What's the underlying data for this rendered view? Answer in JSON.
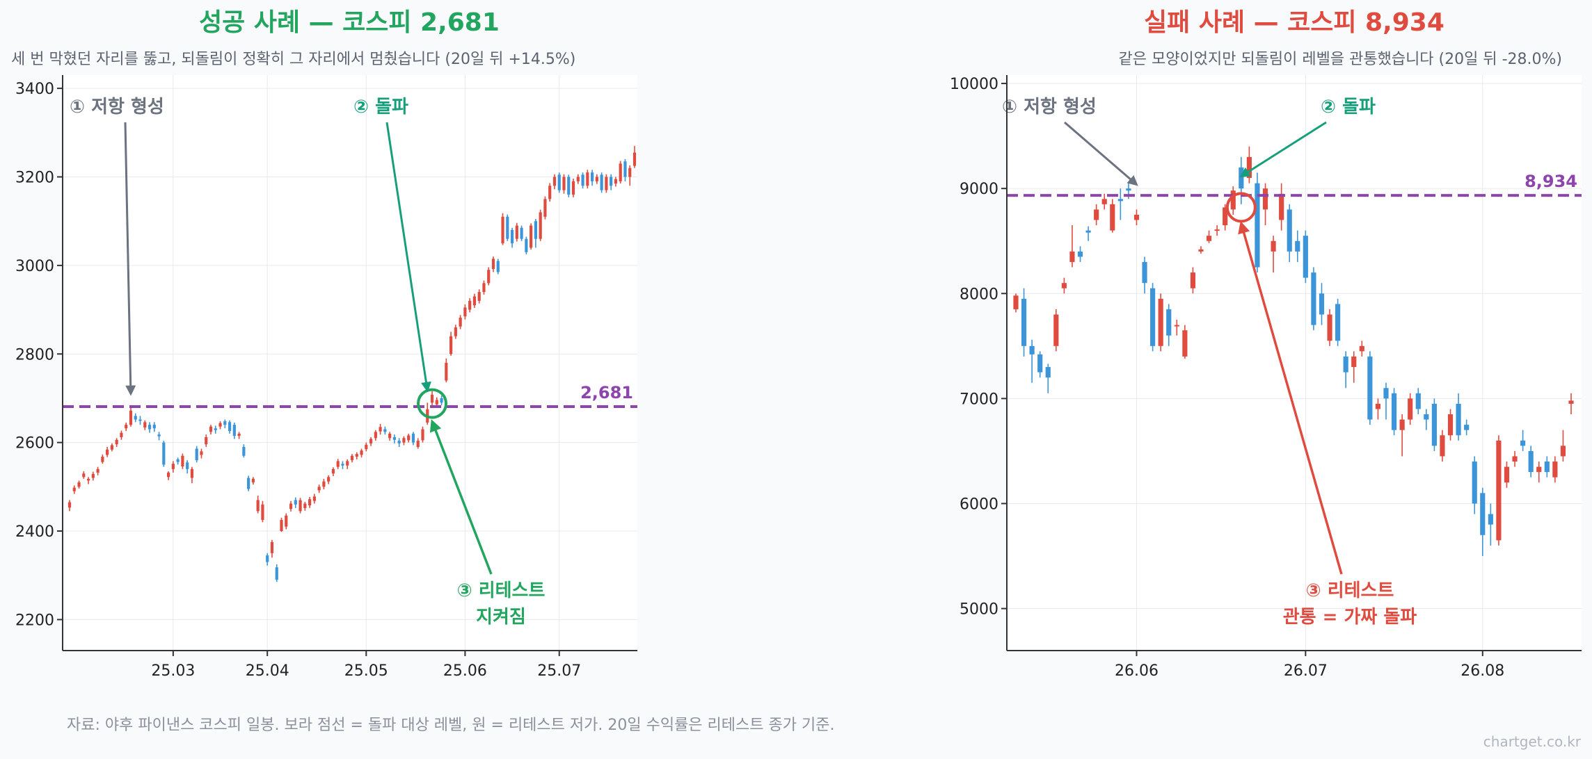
{
  "colors": {
    "up": "#e04b3f",
    "down": "#3b95d8",
    "level": "#8e44ad",
    "success": "#22a55e",
    "failure": "#e04b3f",
    "neutral": "#6b7280",
    "breakout": "#179e7a"
  },
  "footer": {
    "source": "자료: 야후 파이낸스 코스피 일봉. 보라 점선 = 돌파 대상 레벨, 원 = 리테스트 저가. 20일 수익률은 리테스트 종가 기준.",
    "brand": "chartget.co.kr"
  },
  "chart_data": [
    {
      "type": "candlestick",
      "title": "성공 사례 — 코스피 2,681",
      "subtitle": "세 번 막혔던 자리를 뚫고, 되돌림이 정확히 그 자리에서 멈췄습니다  (20일 뒤 +14.5%)",
      "title_color": "#22a55e",
      "ylim": [
        2130,
        3430
      ],
      "yticks": [
        2200,
        2400,
        2600,
        2800,
        3000,
        3200,
        3400
      ],
      "ytick_labels": [
        "2200",
        "2400",
        "2600",
        "2800",
        "3000",
        "3200",
        "3400"
      ],
      "xticks": [
        "25.03",
        "25.04",
        "25.05",
        "25.06",
        "25.07"
      ],
      "grid": true,
      "level": 2681,
      "level_label": "2,681",
      "retest": {
        "index": 77,
        "price": 2688
      },
      "annotations": [
        {
          "id": "resistance",
          "text": "① 저항 형성",
          "target_index": 13,
          "target_price": 2688,
          "color": "#6b7280"
        },
        {
          "id": "breakout",
          "text": "② 돌파",
          "target_index": 76,
          "target_price": 2702,
          "color": "#179e7a"
        },
        {
          "id": "retest",
          "text": "③ 리테스트",
          "text2": "지켜짐",
          "target_index": 77,
          "target_price": 2660,
          "color": "#22a55e"
        }
      ],
      "candles": [
        [
          2453,
          2465,
          2445,
          2470
        ],
        [
          2490,
          2498,
          2484,
          2503
        ],
        [
          2500,
          2510,
          2496,
          2514
        ],
        [
          2522,
          2530,
          2518,
          2535
        ],
        [
          2514,
          2518,
          2506,
          2522
        ],
        [
          2520,
          2529,
          2514,
          2534
        ],
        [
          2532,
          2540,
          2526,
          2545
        ],
        [
          2556,
          2568,
          2552,
          2573
        ],
        [
          2572,
          2584,
          2567,
          2590
        ],
        [
          2584,
          2594,
          2580,
          2598
        ],
        [
          2596,
          2606,
          2590,
          2610
        ],
        [
          2612,
          2622,
          2606,
          2627
        ],
        [
          2632,
          2640,
          2626,
          2645
        ],
        [
          2640,
          2672,
          2636,
          2684
        ],
        [
          2660,
          2652,
          2646,
          2666
        ],
        [
          2652,
          2650,
          2640,
          2660
        ],
        [
          2634,
          2646,
          2628,
          2650
        ],
        [
          2640,
          2630,
          2622,
          2646
        ],
        [
          2640,
          2632,
          2624,
          2646
        ],
        [
          2618,
          2614,
          2605,
          2624
        ],
        [
          2600,
          2550,
          2545,
          2604
        ],
        [
          2522,
          2532,
          2515,
          2535
        ],
        [
          2540,
          2552,
          2532,
          2558
        ],
        [
          2562,
          2556,
          2550,
          2566
        ],
        [
          2546,
          2570,
          2540,
          2575
        ],
        [
          2555,
          2540,
          2530,
          2560
        ],
        [
          2520,
          2540,
          2508,
          2545
        ],
        [
          2586,
          2560,
          2555,
          2592
        ],
        [
          2572,
          2580,
          2564,
          2586
        ],
        [
          2596,
          2612,
          2590,
          2618
        ],
        [
          2624,
          2636,
          2618,
          2640
        ],
        [
          2632,
          2628,
          2620,
          2638
        ],
        [
          2636,
          2644,
          2630,
          2648
        ],
        [
          2648,
          2640,
          2632,
          2652
        ],
        [
          2646,
          2626,
          2620,
          2650
        ],
        [
          2640,
          2615,
          2608,
          2645
        ],
        [
          2615,
          2620,
          2608,
          2624
        ],
        [
          2590,
          2570,
          2566,
          2596
        ],
        [
          2520,
          2495,
          2490,
          2525
        ],
        [
          2510,
          2518,
          2505,
          2522
        ],
        [
          2445,
          2470,
          2440,
          2480
        ],
        [
          2425,
          2460,
          2420,
          2468
        ],
        [
          2345,
          2330,
          2322,
          2350
        ],
        [
          2350,
          2375,
          2340,
          2380
        ],
        [
          2318,
          2290,
          2285,
          2325
        ],
        [
          2400,
          2425,
          2398,
          2430
        ],
        [
          2410,
          2435,
          2404,
          2440
        ],
        [
          2450,
          2462,
          2444,
          2468
        ],
        [
          2470,
          2460,
          2452,
          2476
        ],
        [
          2445,
          2470,
          2440,
          2475
        ],
        [
          2452,
          2462,
          2446,
          2466
        ],
        [
          2458,
          2472,
          2452,
          2477
        ],
        [
          2468,
          2478,
          2462,
          2484
        ],
        [
          2492,
          2500,
          2486,
          2505
        ],
        [
          2500,
          2512,
          2494,
          2518
        ],
        [
          2512,
          2522,
          2506,
          2526
        ],
        [
          2530,
          2540,
          2524,
          2544
        ],
        [
          2545,
          2558,
          2540,
          2563
        ],
        [
          2552,
          2548,
          2540,
          2558
        ],
        [
          2548,
          2558,
          2540,
          2562
        ],
        [
          2560,
          2570,
          2555,
          2574
        ],
        [
          2568,
          2574,
          2562,
          2578
        ],
        [
          2572,
          2582,
          2566,
          2586
        ],
        [
          2585,
          2595,
          2580,
          2600
        ],
        [
          2598,
          2608,
          2592,
          2612
        ],
        [
          2610,
          2624,
          2604,
          2628
        ],
        [
          2625,
          2635,
          2618,
          2642
        ],
        [
          2630,
          2624,
          2618,
          2636
        ],
        [
          2610,
          2620,
          2604,
          2624
        ],
        [
          2612,
          2606,
          2598,
          2618
        ],
        [
          2604,
          2598,
          2590,
          2610
        ],
        [
          2600,
          2610,
          2594,
          2614
        ],
        [
          2605,
          2616,
          2600,
          2620
        ],
        [
          2620,
          2600,
          2594,
          2624
        ],
        [
          2590,
          2604,
          2586,
          2610
        ],
        [
          2605,
          2630,
          2600,
          2636
        ],
        [
          2645,
          2675,
          2640,
          2690
        ],
        [
          2690,
          2708,
          2684,
          2716
        ],
        [
          2686,
          2696,
          2680,
          2702
        ],
        [
          2700,
          2690,
          2684,
          2706
        ],
        [
          2740,
          2780,
          2736,
          2790
        ],
        [
          2800,
          2840,
          2796,
          2850
        ],
        [
          2840,
          2860,
          2834,
          2866
        ],
        [
          2862,
          2882,
          2856,
          2888
        ],
        [
          2885,
          2905,
          2878,
          2912
        ],
        [
          2900,
          2920,
          2894,
          2926
        ],
        [
          2910,
          2930,
          2904,
          2936
        ],
        [
          2920,
          2940,
          2914,
          2946
        ],
        [
          2940,
          2960,
          2934,
          2966
        ],
        [
          2960,
          2990,
          2955,
          2996
        ],
        [
          2992,
          3015,
          2985,
          3020
        ],
        [
          3010,
          2985,
          2980,
          3015
        ],
        [
          3050,
          3110,
          3046,
          3118
        ],
        [
          3110,
          3060,
          3055,
          3115
        ],
        [
          3080,
          3050,
          3040,
          3085
        ],
        [
          3060,
          3090,
          3054,
          3096
        ],
        [
          3085,
          3060,
          3055,
          3090
        ],
        [
          3060,
          3030,
          3025,
          3065
        ],
        [
          3040,
          3090,
          3036,
          3095
        ],
        [
          3100,
          3060,
          3040,
          3105
        ],
        [
          3060,
          3120,
          3055,
          3126
        ],
        [
          3110,
          3150,
          3104,
          3156
        ],
        [
          3150,
          3180,
          3144,
          3186
        ],
        [
          3180,
          3200,
          3172,
          3206
        ],
        [
          3205,
          3170,
          3164,
          3210
        ],
        [
          3170,
          3200,
          3162,
          3206
        ],
        [
          3200,
          3160,
          3154,
          3205
        ],
        [
          3160,
          3190,
          3154,
          3196
        ],
        [
          3190,
          3200,
          3184,
          3206
        ],
        [
          3205,
          3180,
          3174,
          3210
        ],
        [
          3180,
          3210,
          3174,
          3216
        ],
        [
          3210,
          3190,
          3180,
          3216
        ],
        [
          3190,
          3200,
          3184,
          3206
        ],
        [
          3205,
          3170,
          3164,
          3210
        ],
        [
          3170,
          3200,
          3164,
          3206
        ],
        [
          3200,
          3180,
          3170,
          3206
        ],
        [
          3185,
          3195,
          3178,
          3200
        ],
        [
          3190,
          3230,
          3185,
          3236
        ],
        [
          3235,
          3200,
          3190,
          3240
        ],
        [
          3200,
          3220,
          3180,
          3226
        ],
        [
          3225,
          3255,
          3220,
          3270
        ]
      ]
    },
    {
      "type": "candlestick",
      "title": "실패 사례 — 코스피 8,934",
      "subtitle": "같은 모양이었지만 되돌림이 레벨을 관통했습니다  (20일 뒤 -28.0%)",
      "title_color": "#e04b3f",
      "ylim": [
        4600,
        10080
      ],
      "yticks": [
        5000,
        6000,
        7000,
        8000,
        9000,
        10000
      ],
      "ytick_labels": [
        "5000",
        "6000",
        "7000",
        "8000",
        "9000",
        "10000"
      ],
      "xticks": [
        "26.06",
        "26.07",
        "26.08"
      ],
      "grid": true,
      "level": 8934,
      "level_label": "8,934",
      "retest": {
        "index": 28,
        "price": 8820
      },
      "annotations": [
        {
          "id": "resistance",
          "text": "① 저항 형성",
          "target_index": 15,
          "target_price": 8945,
          "color": "#6b7280"
        },
        {
          "id": "breakout",
          "text": "② 돌파",
          "target_index": 28,
          "target_price": 9050,
          "color": "#179e7a"
        },
        {
          "id": "retest",
          "text": "③ 리테스트",
          "text2": "관통 = 가짜 돌파",
          "target_index": 28,
          "target_price": 8720,
          "color": "#e04b3f"
        }
      ],
      "candles": [
        [
          7850,
          7980,
          7820,
          8000
        ],
        [
          7950,
          7500,
          7400,
          8050
        ],
        [
          7500,
          7420,
          7150,
          7560
        ],
        [
          7420,
          7250,
          7200,
          7450
        ],
        [
          7300,
          7200,
          7050,
          7330
        ],
        [
          7500,
          7800,
          7450,
          7850
        ],
        [
          8050,
          8100,
          8000,
          8150
        ],
        [
          8300,
          8400,
          8250,
          8650
        ],
        [
          8400,
          8350,
          8300,
          8450
        ],
        [
          8600,
          8580,
          8500,
          8640
        ],
        [
          8700,
          8800,
          8650,
          8850
        ],
        [
          8850,
          8900,
          8800,
          8950
        ],
        [
          8600,
          8850,
          8580,
          8900
        ],
        [
          8900,
          8880,
          8700,
          9000
        ],
        [
          9000,
          8980,
          8900,
          9050
        ],
        [
          8700,
          8750,
          8650,
          8800
        ],
        [
          8300,
          8100,
          8000,
          8350
        ],
        [
          8050,
          7500,
          7450,
          8100
        ],
        [
          7500,
          7950,
          7450,
          8000
        ],
        [
          7850,
          7600,
          7500,
          7900
        ],
        [
          7700,
          7700,
          7600,
          7750
        ],
        [
          7400,
          7650,
          7380,
          7700
        ],
        [
          8050,
          8200,
          8000,
          8250
        ],
        [
          8400,
          8420,
          8380,
          8450
        ],
        [
          8500,
          8550,
          8480,
          8600
        ],
        [
          8600,
          8610,
          8550,
          8650
        ],
        [
          8650,
          8820,
          8600,
          8850
        ],
        [
          8800,
          8980,
          8750,
          9020
        ],
        [
          9200,
          9000,
          8850,
          9300
        ],
        [
          9100,
          9300,
          9050,
          9400
        ],
        [
          9050,
          8250,
          8200,
          9150
        ],
        [
          8800,
          9000,
          8650,
          9050
        ],
        [
          8400,
          8500,
          8200,
          8550
        ],
        [
          8700,
          8950,
          8600,
          9050
        ],
        [
          8800,
          8400,
          8300,
          8850
        ],
        [
          8500,
          8400,
          8300,
          8600
        ],
        [
          8550,
          8150,
          8100,
          8600
        ],
        [
          8200,
          7700,
          7650,
          8250
        ],
        [
          8000,
          7800,
          7700,
          8100
        ],
        [
          7550,
          7800,
          7500,
          7850
        ],
        [
          7900,
          7550,
          7500,
          7950
        ],
        [
          7400,
          7250,
          7100,
          7450
        ],
        [
          7300,
          7400,
          7150,
          7450
        ],
        [
          7450,
          7500,
          7400,
          7550
        ],
        [
          7400,
          6800,
          6750,
          7450
        ],
        [
          6900,
          6950,
          6800,
          7000
        ],
        [
          7100,
          7000,
          6800,
          7150
        ],
        [
          7050,
          6700,
          6650,
          7100
        ],
        [
          6700,
          6800,
          6450,
          6850
        ],
        [
          6800,
          7000,
          6750,
          7050
        ],
        [
          7050,
          6900,
          6850,
          7100
        ],
        [
          6850,
          6800,
          6700,
          6900
        ],
        [
          6950,
          6550,
          6500,
          7000
        ],
        [
          6450,
          6650,
          6400,
          6700
        ],
        [
          6650,
          6850,
          6600,
          6900
        ],
        [
          6950,
          6650,
          6600,
          7050
        ],
        [
          6750,
          6700,
          6650,
          6800
        ],
        [
          6400,
          6000,
          5900,
          6450
        ],
        [
          6100,
          5700,
          5500,
          6150
        ],
        [
          5900,
          5800,
          5600,
          6000
        ],
        [
          5650,
          6600,
          5600,
          6650
        ],
        [
          6200,
          6350,
          6150,
          6400
        ],
        [
          6400,
          6450,
          6350,
          6500
        ],
        [
          6600,
          6550,
          6500,
          6700
        ],
        [
          6500,
          6300,
          6250,
          6550
        ],
        [
          6300,
          6350,
          6200,
          6400
        ],
        [
          6400,
          6300,
          6250,
          6450
        ],
        [
          6250,
          6400,
          6200,
          6450
        ],
        [
          6450,
          6550,
          6400,
          6700
        ],
        [
          6950,
          6980,
          6850,
          7050
        ]
      ]
    }
  ]
}
